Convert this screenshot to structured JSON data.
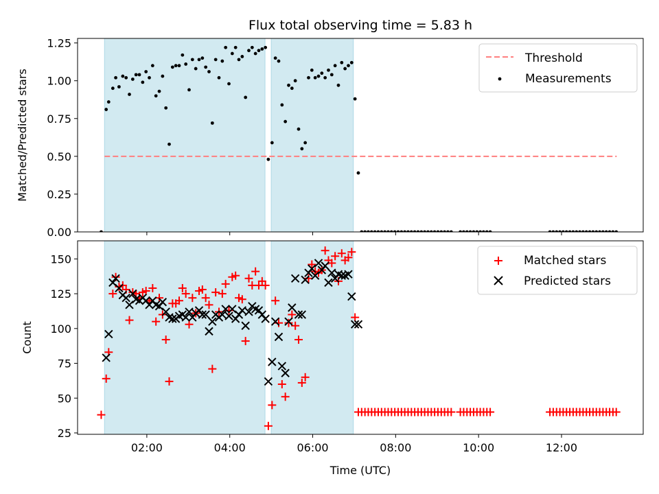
{
  "figure": {
    "title": "Flux total observing time = 5.83 h"
  },
  "colors": {
    "observing_span": "#add8e6",
    "threshold": "#ff7f7f",
    "measurements": "#000000",
    "matched": "#ff0000",
    "predicted": "#000000"
  },
  "chart_data": [
    {
      "type": "scatter",
      "panel": "top",
      "title": "Flux total observing time = 5.83 h",
      "ylabel": "Matched/Predicted stars",
      "xlim": [
        0.33,
        13.97
      ],
      "ylim": [
        0,
        1.28
      ],
      "yticks": [
        0,
        0.25,
        0.5,
        0.75,
        1.0,
        1.25
      ],
      "ytick_labels": [
        "0.00",
        "0.25",
        "0.50",
        "0.75",
        "1.00",
        "1.25"
      ],
      "xticks": [
        2,
        4,
        6,
        8,
        10,
        12
      ],
      "xtick_labels": [
        "",
        "",
        "",
        "",
        "",
        ""
      ],
      "grid": false,
      "legend": "upper right",
      "shaded_spans": [
        [
          0.98,
          4.85
        ],
        [
          5.0,
          6.98
        ]
      ],
      "threshold": {
        "name": "Threshold",
        "x": [
          0.98,
          13.33
        ],
        "y": 0.5
      },
      "series": [
        {
          "name": "Measurements",
          "x": [
            0.9,
            1.02,
            1.08,
            1.18,
            1.25,
            1.33,
            1.42,
            1.5,
            1.58,
            1.66,
            1.74,
            1.82,
            1.9,
            1.98,
            2.06,
            2.14,
            2.22,
            2.3,
            2.38,
            2.46,
            2.54,
            2.62,
            2.7,
            2.78,
            2.86,
            2.94,
            3.02,
            3.1,
            3.18,
            3.26,
            3.34,
            3.42,
            3.5,
            3.58,
            3.66,
            3.74,
            3.82,
            3.9,
            3.98,
            4.06,
            4.14,
            4.22,
            4.3,
            4.38,
            4.46,
            4.54,
            4.62,
            4.7,
            4.78,
            4.86,
            4.93,
            5.02,
            5.1,
            5.18,
            5.26,
            5.34,
            5.42,
            5.5,
            5.58,
            5.66,
            5.74,
            5.82,
            5.9,
            5.98,
            6.06,
            6.14,
            6.22,
            6.3,
            6.38,
            6.46,
            6.54,
            6.62,
            6.7,
            6.78,
            6.86,
            6.94,
            7.02,
            7.1,
            7.18,
            7.26,
            7.34,
            7.42,
            7.5,
            7.58,
            7.66,
            7.74,
            7.82,
            7.9,
            7.98,
            8.06,
            8.14,
            8.22,
            8.3,
            8.38,
            8.46,
            8.54,
            8.62,
            8.7,
            8.78,
            8.86,
            8.94,
            9.02,
            9.1,
            9.18,
            9.26,
            9.34,
            9.56,
            9.64,
            9.72,
            9.8,
            9.88,
            9.96,
            10.04,
            10.12,
            10.2,
            10.28,
            11.72,
            11.8,
            11.88,
            11.96,
            12.04,
            12.12,
            12.2,
            12.28,
            12.36,
            12.44,
            12.52,
            12.6,
            12.68,
            12.76,
            12.84,
            12.92,
            13.0,
            13.08,
            13.16,
            13.24,
            13.32
          ],
          "y": [
            0.0,
            0.81,
            0.86,
            0.95,
            1.02,
            0.96,
            1.03,
            1.02,
            0.91,
            1.01,
            1.04,
            1.04,
            0.99,
            1.06,
            1.02,
            1.1,
            0.9,
            0.93,
            1.03,
            0.82,
            0.58,
            1.09,
            1.1,
            1.1,
            1.17,
            1.11,
            0.94,
            1.14,
            1.08,
            1.14,
            1.15,
            1.09,
            1.06,
            0.72,
            1.14,
            1.02,
            1.13,
            1.22,
            0.98,
            1.18,
            1.22,
            1.14,
            1.16,
            0.89,
            1.2,
            1.22,
            1.18,
            1.2,
            1.21,
            1.22,
            0.48,
            0.59,
            1.15,
            1.13,
            0.84,
            0.73,
            0.97,
            0.95,
            1.0,
            0.68,
            0.55,
            0.59,
            1.02,
            1.07,
            1.02,
            1.03,
            1.05,
            1.02,
            1.07,
            1.04,
            1.1,
            0.97,
            1.12,
            1.08,
            1.1,
            1.12,
            0.88,
            0.39,
            0.0,
            0.0,
            0.0,
            0.0,
            0.0,
            0.0,
            0.0,
            0.0,
            0.0,
            0.0,
            0.0,
            0.0,
            0.0,
            0.0,
            0.0,
            0.0,
            0.0,
            0.0,
            0.0,
            0.0,
            0.0,
            0.0,
            0.0,
            0.0,
            0.0,
            0.0,
            0.0,
            0.0,
            0.0,
            0.0,
            0.0,
            0.0,
            0.0,
            0.0,
            0.0,
            0.0,
            0.0,
            0.0,
            0.0,
            0.0,
            0.0,
            0.0,
            0.0,
            0.0,
            0.0,
            0.0,
            0.0,
            0.0,
            0.0,
            0.0,
            0.0,
            0.0,
            0.0,
            0.0,
            0.0,
            0.0,
            0.0,
            0.0,
            0.0
          ]
        }
      ]
    },
    {
      "type": "scatter",
      "panel": "bottom",
      "xlabel": "Time (UTC)",
      "ylabel": "Count",
      "xlim": [
        0.33,
        13.97
      ],
      "ylim": [
        24,
        163
      ],
      "yticks": [
        25,
        50,
        75,
        100,
        125,
        150
      ],
      "ytick_labels": [
        "25",
        "50",
        "75",
        "100",
        "125",
        "150"
      ],
      "xticks": [
        2,
        4,
        6,
        8,
        10,
        12
      ],
      "xtick_labels": [
        "02:00",
        "04:00",
        "06:00",
        "08:00",
        "10:00",
        "12:00"
      ],
      "grid": false,
      "legend": "upper right",
      "shaded_spans": [
        [
          0.98,
          4.85
        ],
        [
          5.0,
          6.98
        ]
      ],
      "series": [
        {
          "name": "Matched stars",
          "marker": "+",
          "x": [
            0.9,
            1.02,
            1.08,
            1.18,
            1.25,
            1.33,
            1.42,
            1.5,
            1.58,
            1.66,
            1.74,
            1.82,
            1.9,
            1.98,
            2.06,
            2.14,
            2.22,
            2.3,
            2.38,
            2.46,
            2.54,
            2.62,
            2.7,
            2.78,
            2.86,
            2.94,
            3.02,
            3.1,
            3.18,
            3.26,
            3.34,
            3.42,
            3.5,
            3.58,
            3.66,
            3.74,
            3.82,
            3.9,
            3.98,
            4.06,
            4.14,
            4.22,
            4.3,
            4.38,
            4.46,
            4.54,
            4.62,
            4.7,
            4.78,
            4.86,
            4.93,
            5.02,
            5.1,
            5.18,
            5.26,
            5.34,
            5.42,
            5.5,
            5.58,
            5.66,
            5.74,
            5.82,
            5.9,
            5.98,
            6.06,
            6.14,
            6.22,
            6.3,
            6.38,
            6.46,
            6.54,
            6.62,
            6.7,
            6.78,
            6.86,
            6.94,
            7.02,
            7.1,
            7.18,
            7.26,
            7.34,
            7.42,
            7.5,
            7.58,
            7.66,
            7.74,
            7.82,
            7.9,
            7.98,
            8.06,
            8.14,
            8.22,
            8.3,
            8.38,
            8.46,
            8.54,
            8.62,
            8.7,
            8.78,
            8.86,
            8.94,
            9.02,
            9.1,
            9.18,
            9.26,
            9.34,
            9.56,
            9.64,
            9.72,
            9.8,
            9.88,
            9.96,
            10.04,
            10.12,
            10.2,
            10.28,
            11.72,
            11.8,
            11.88,
            11.96,
            12.04,
            12.12,
            12.2,
            12.28,
            12.36,
            12.44,
            12.52,
            12.6,
            12.68,
            12.76,
            12.84,
            12.92,
            13.0,
            13.08,
            13.16,
            13.24,
            13.32
          ],
          "y": [
            38,
            64,
            83,
            125,
            137,
            130,
            131,
            128,
            106,
            126,
            125,
            122,
            126,
            127,
            120,
            129,
            105,
            122,
            110,
            92,
            62,
            118,
            118,
            120,
            129,
            125,
            103,
            122,
            111,
            127,
            128,
            122,
            117,
            71,
            126,
            112,
            125,
            132,
            113,
            137,
            138,
            122,
            121,
            91,
            136,
            131,
            141,
            131,
            134,
            131,
            30,
            45,
            120,
            104,
            60,
            51,
            104,
            110,
            102,
            92,
            61,
            65,
            136,
            146,
            141,
            140,
            142,
            156,
            149,
            147,
            152,
            134,
            154,
            149,
            151,
            155,
            108,
            40,
            40,
            40,
            40,
            40,
            40,
            40,
            40,
            40,
            40,
            40,
            40,
            40,
            40,
            40,
            40,
            40,
            40,
            40,
            40,
            40,
            40,
            40,
            40,
            40,
            40,
            40,
            40,
            40,
            40,
            40,
            40,
            40,
            40,
            40,
            40,
            40,
            40,
            40,
            40,
            40,
            40,
            40,
            40,
            40,
            40,
            40,
            40,
            40,
            40,
            40,
            40,
            40,
            40,
            40,
            40,
            40,
            40,
            40,
            40
          ]
        },
        {
          "name": "Predicted stars",
          "marker": "x",
          "x": [
            1.02,
            1.08,
            1.18,
            1.25,
            1.33,
            1.42,
            1.5,
            1.58,
            1.66,
            1.74,
            1.82,
            1.9,
            1.98,
            2.06,
            2.14,
            2.22,
            2.3,
            2.38,
            2.46,
            2.54,
            2.62,
            2.7,
            2.78,
            2.86,
            2.94,
            3.02,
            3.1,
            3.18,
            3.26,
            3.34,
            3.42,
            3.5,
            3.58,
            3.66,
            3.74,
            3.82,
            3.9,
            3.98,
            4.06,
            4.14,
            4.22,
            4.3,
            4.38,
            4.46,
            4.54,
            4.62,
            4.7,
            4.78,
            4.86,
            4.93,
            5.02,
            5.1,
            5.18,
            5.26,
            5.34,
            5.42,
            5.5,
            5.58,
            5.66,
            5.74,
            5.82,
            5.9,
            5.98,
            6.06,
            6.14,
            6.22,
            6.3,
            6.38,
            6.46,
            6.54,
            6.62,
            6.7,
            6.78,
            6.86,
            6.94,
            7.02,
            7.1
          ],
          "y": [
            79,
            96,
            133,
            136,
            129,
            124,
            122,
            117,
            125,
            121,
            120,
            122,
            120,
            117,
            120,
            117,
            116,
            119,
            112,
            108,
            107,
            107,
            109,
            110,
            108,
            112,
            108,
            111,
            113,
            110,
            110,
            98,
            105,
            110,
            108,
            110,
            114,
            109,
            114,
            107,
            110,
            113,
            102,
            112,
            116,
            114,
            113,
            110,
            107,
            62,
            76,
            105,
            94,
            73,
            68,
            105,
            115,
            136,
            110,
            110,
            135,
            140,
            143,
            138,
            147,
            142,
            145,
            133,
            140,
            136,
            139,
            138,
            138,
            139,
            123,
            103,
            103
          ]
        }
      ]
    }
  ]
}
